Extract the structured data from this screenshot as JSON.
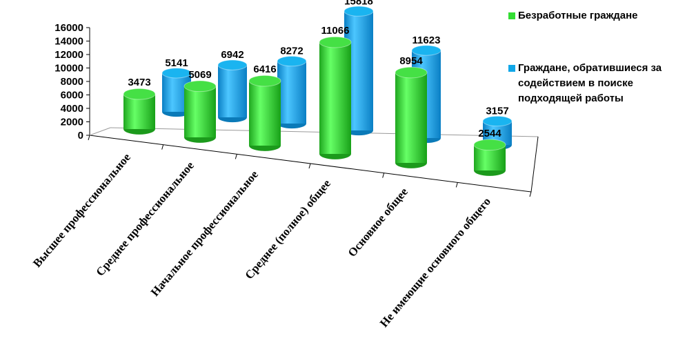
{
  "chart_data": {
    "type": "bar",
    "style": "3d-cylinder",
    "categories": [
      "Высшее профессиональное",
      "Среднее профессиональное",
      "Начальное профессиональное",
      "Среднее (полное) общее",
      "Основное общее",
      "Не имеющие основного общего"
    ],
    "series": [
      {
        "name": "Безработные граждане",
        "color": "#33dd33",
        "values": [
          3473,
          5069,
          6416,
          11066,
          8954,
          2544
        ]
      },
      {
        "name": "Граждане, обратившиеся за содействием в поиске подходящей работы",
        "color": "#11a7e8",
        "values": [
          5141,
          6942,
          8272,
          15818,
          11623,
          3157
        ]
      }
    ],
    "yticks": [
      0,
      2000,
      4000,
      6000,
      8000,
      10000,
      12000,
      14000,
      16000
    ],
    "ylim": [
      0,
      16000
    ],
    "legend_position": "right",
    "legend": [
      {
        "text": "Безработные граждане",
        "color": "#33dd33"
      },
      {
        "text": "Граждане, обратившиеся за содействием в поиске подходящей работы",
        "color": "#11a7e8"
      }
    ]
  }
}
